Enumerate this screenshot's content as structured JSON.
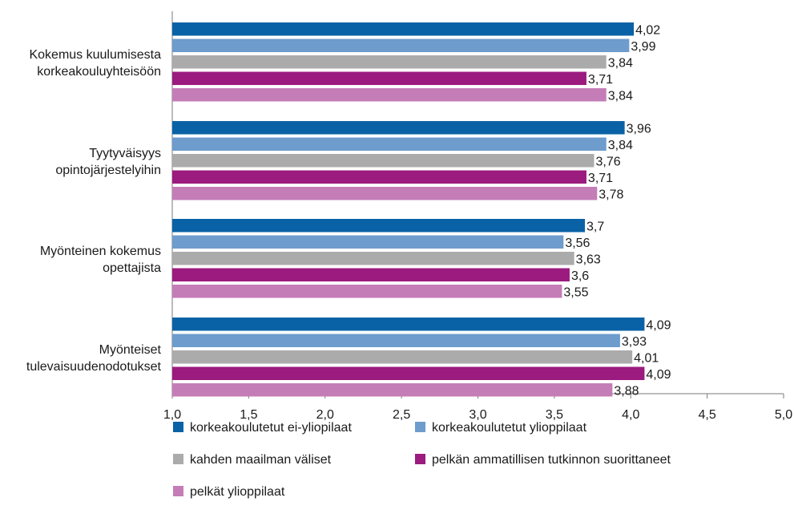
{
  "chart_data": {
    "type": "bar",
    "orientation": "horizontal",
    "categories": [
      [
        "Kokemus kuulumisesta",
        "korkeakouluyhteisöön"
      ],
      [
        "Tyytyväisyys",
        "opintojärjestelyihin"
      ],
      [
        "Myönteinen kokemus",
        "opettajista"
      ],
      [
        "Myönteiset",
        "tulevaisuudenodotukset"
      ]
    ],
    "series": [
      {
        "name": "korkeakoulutetut ei-yliopilaat",
        "color": "#0a62a6",
        "values": [
          4.02,
          3.96,
          3.7,
          4.09
        ],
        "labels": [
          "4,02",
          "3,96",
          "3,7",
          "4,09"
        ]
      },
      {
        "name": "korkeakoulutetut ylioppilaat",
        "color": "#6d9ccd",
        "values": [
          3.99,
          3.84,
          3.56,
          3.93
        ],
        "labels": [
          "3,99",
          "3,84",
          "3,56",
          "3,93"
        ]
      },
      {
        "name": "kahden maailman väliset",
        "color": "#ababab",
        "values": [
          3.84,
          3.76,
          3.63,
          4.01
        ],
        "labels": [
          "3,84",
          "3,76",
          "3,63",
          "4,01"
        ]
      },
      {
        "name": "pelkän ammatillisen tutkinnon suorittaneet",
        "color": "#9b1b7e",
        "values": [
          3.71,
          3.71,
          3.6,
          4.09
        ],
        "labels": [
          "3,71",
          "3,71",
          "3,6",
          "4,09"
        ]
      },
      {
        "name": "pelkät ylioppilaat",
        "color": "#c47db7",
        "values": [
          3.84,
          3.78,
          3.55,
          3.88
        ],
        "labels": [
          "3,84",
          "3,78",
          "3,55",
          "3,88"
        ]
      }
    ],
    "xlim": [
      1.0,
      5.0
    ],
    "xticks": [
      "1,0",
      "1,5",
      "2,0",
      "2,5",
      "3,0",
      "3,5",
      "4,0",
      "4,5",
      "5,0"
    ],
    "title": "",
    "xlabel": "",
    "ylabel": "",
    "grid": false,
    "legend_position": "bottom"
  }
}
